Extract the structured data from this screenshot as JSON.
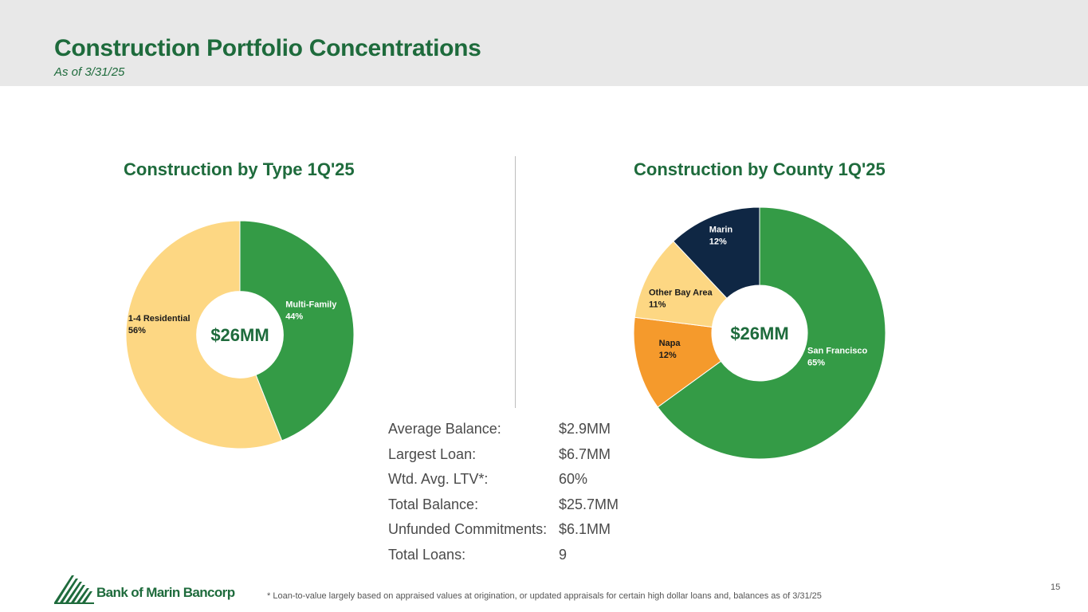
{
  "header": {
    "title": "Construction Portfolio Concentrations",
    "subtitle": "As of 3/31/25"
  },
  "chart_data": [
    {
      "type": "pie",
      "title": "Construction by Type 1Q'25",
      "center_label": "$26MM",
      "slices": [
        {
          "name": "Multi-Family",
          "value": 44,
          "label": "44%",
          "color": "#349b46",
          "text_color": "#ffffff"
        },
        {
          "name": "1-4 Residential",
          "value": 56,
          "label": "56%",
          "color": "#fdd783",
          "text_color": "#1a1a1a"
        }
      ]
    },
    {
      "type": "pie",
      "title": "Construction by County 1Q'25",
      "center_label": "$26MM",
      "slices": [
        {
          "name": "San Francisco",
          "value": 65,
          "label": "65%",
          "color": "#349b46",
          "text_color": "#ffffff"
        },
        {
          "name": "Napa",
          "value": 12,
          "label": "12%",
          "color": "#f59a2c",
          "text_color": "#1a1a1a"
        },
        {
          "name": "Other Bay Area",
          "value": 11,
          "label": "11%",
          "color": "#fdd783",
          "text_color": "#1a1a1a"
        },
        {
          "name": "Marin",
          "value": 12,
          "label": "12%",
          "color": "#0f2744",
          "text_color": "#ffffff"
        }
      ]
    }
  ],
  "stats": [
    {
      "label": "Average Balance:",
      "value": "$2.9MM"
    },
    {
      "label": "Largest Loan:",
      "value": "$6.7MM"
    },
    {
      "label": "Wtd. Avg. LTV*:",
      "value": "60%"
    },
    {
      "label": "Total Balance:",
      "value": "$25.7MM"
    },
    {
      "label": "Unfunded Commitments:",
      "value": "$6.1MM"
    },
    {
      "label": "Total Loans:",
      "value": "9"
    }
  ],
  "footer": {
    "logo_text": "Bank of Marin Bancorp",
    "footnote": "*  Loan-to-value largely based on appraised values at origination, or updated appraisals for certain high dollar loans and, balances as of 3/31/25",
    "page_number": "15"
  },
  "colors": {
    "brand_green": "#1e6b3c",
    "header_bg": "#e8e8e8"
  }
}
